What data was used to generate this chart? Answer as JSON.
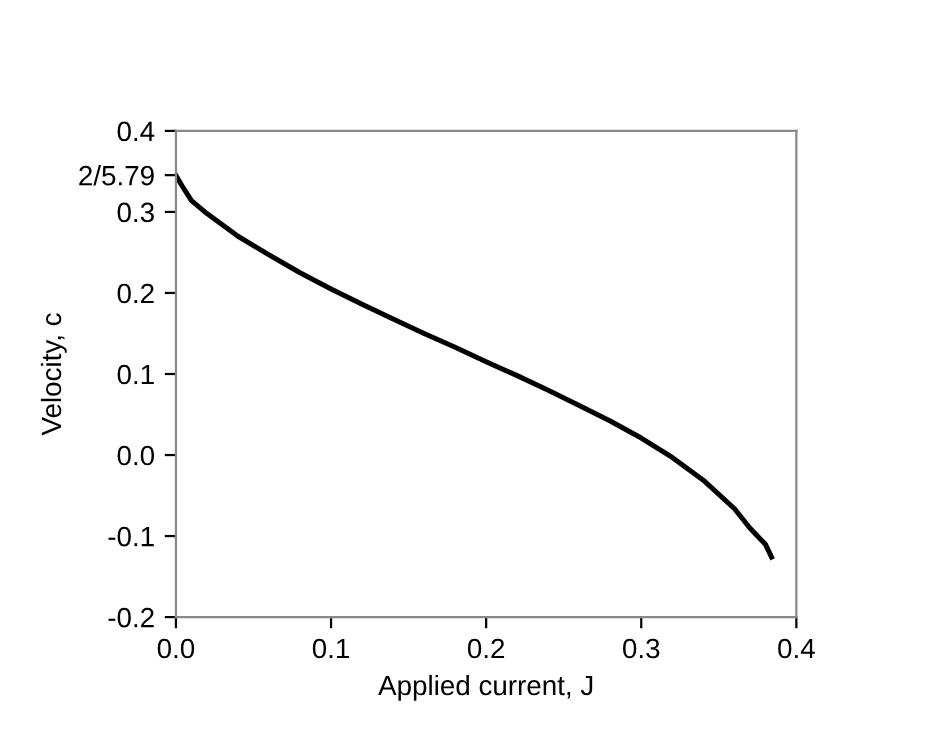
{
  "chart_data": {
    "type": "line",
    "xlabel": "Applied current, J",
    "ylabel": "Velocity, c",
    "x": [
      0,
      0.004,
      0.01,
      0.02,
      0.04,
      0.06,
      0.08,
      0.1,
      0.12,
      0.14,
      0.16,
      0.18,
      0.2,
      0.22,
      0.24,
      0.26,
      0.28,
      0.3,
      0.32,
      0.34,
      0.36,
      0.37,
      0.38,
      0.384
    ],
    "series": [
      {
        "color": "#000000",
        "values": [
          0.345,
          0.332,
          0.314,
          0.298,
          0.27,
          0.247,
          0.225,
          0.205,
          0.186,
          0.168,
          0.15,
          0.133,
          0.115,
          0.098,
          0.08,
          0.061,
          0.042,
          0.021,
          -0.003,
          -0.031,
          -0.066,
          -0.09,
          -0.11,
          -0.126
        ]
      }
    ],
    "xlim": [
      0,
      0.4
    ],
    "ylim": [
      -0.2,
      0.4
    ],
    "xticks": [
      {
        "value": 0,
        "label": "0.0"
      },
      0.1,
      0.2,
      0.3,
      0.4
    ],
    "yticks": [
      {
        "value": -0.2,
        "label": "-0.2"
      },
      {
        "value": -0.1,
        "label": "-0.1"
      },
      {
        "value": 0,
        "label": "0.0"
      },
      0.1,
      0.2,
      0.3,
      {
        "value": 0.3454,
        "label": "2/5.79"
      },
      0.4
    ],
    "grid": false,
    "legend": false,
    "marker": "none",
    "line_style": "solid"
  }
}
